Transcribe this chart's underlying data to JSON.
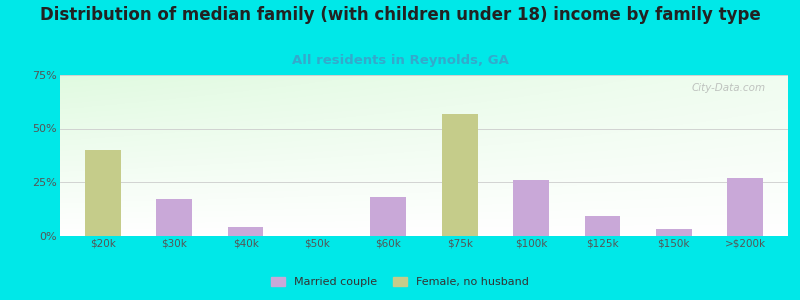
{
  "title": "Distribution of median family (with children under 18) income by family type",
  "subtitle": "All residents in Reynolds, GA",
  "categories": [
    "$20k",
    "$30k",
    "$40k",
    "$50k",
    "$60k",
    "$75k",
    "$100k",
    "$125k",
    "$150k",
    ">$200k"
  ],
  "married_couple": [
    0,
    17,
    4,
    0,
    18,
    0,
    26,
    9,
    3,
    27
  ],
  "female_no_husband": [
    40,
    0,
    0,
    0,
    0,
    57,
    0,
    0,
    0,
    0
  ],
  "bar_color_married": "#c9a8d8",
  "bar_color_female": "#c5cc8a",
  "title_fontsize": 12,
  "subtitle_fontsize": 9.5,
  "subtitle_color": "#33aacc",
  "background_outer": "#00e8e8",
  "ylim": [
    0,
    75
  ],
  "yticks": [
    0,
    25,
    50,
    75
  ],
  "watermark": "City-Data.com",
  "bar_width": 0.5
}
